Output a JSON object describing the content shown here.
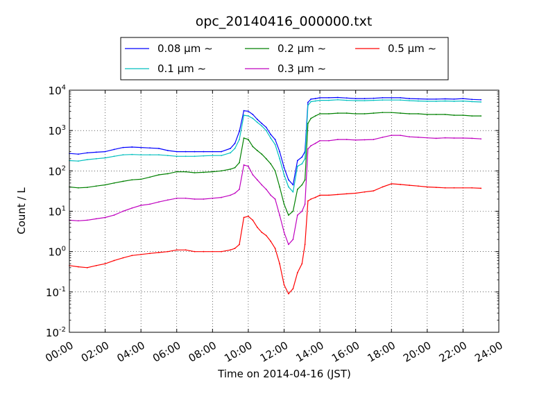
{
  "chart_data": {
    "type": "line",
    "title": "opc_20140416_000000.txt",
    "xlabel": "Time on 2014-04-16 (JST)",
    "ylabel": "Count / L",
    "yscale": "log",
    "xlim": [
      "00:00",
      "24:00"
    ],
    "ylim": [
      0.01,
      10000
    ],
    "grid": true,
    "legend_position": "top-center",
    "x_tick_labels": [
      "00:00",
      "02:00",
      "04:00",
      "06:00",
      "08:00",
      "10:00",
      "12:00",
      "14:00",
      "16:00",
      "18:00",
      "20:00",
      "22:00",
      "24:00"
    ],
    "y_tick_labels": [
      {
        "base": "10",
        "exp": "-2"
      },
      {
        "base": "10",
        "exp": "-1"
      },
      {
        "base": "10",
        "exp": "0"
      },
      {
        "base": "10",
        "exp": "1"
      },
      {
        "base": "10",
        "exp": "2"
      },
      {
        "base": "10",
        "exp": "3"
      },
      {
        "base": "10",
        "exp": "4"
      }
    ],
    "x": [
      "00:00",
      "00:30",
      "01:00",
      "01:30",
      "02:00",
      "02:30",
      "03:00",
      "03:30",
      "04:00",
      "04:30",
      "05:00",
      "05:30",
      "06:00",
      "06:30",
      "07:00",
      "07:30",
      "08:00",
      "08:30",
      "09:00",
      "09:15",
      "09:30",
      "09:45",
      "10:00",
      "10:15",
      "10:30",
      "10:45",
      "11:00",
      "11:15",
      "11:30",
      "11:45",
      "12:00",
      "12:15",
      "12:30",
      "12:45",
      "13:00",
      "13:10",
      "13:20",
      "13:30",
      "13:45",
      "14:00",
      "14:30",
      "15:00",
      "15:30",
      "16:00",
      "16:30",
      "17:00",
      "17:30",
      "18:00",
      "18:30",
      "19:00",
      "19:30",
      "20:00",
      "20:30",
      "21:00",
      "21:30",
      "22:00",
      "22:30",
      "23:00"
    ],
    "series": [
      {
        "name": "0.08 μm ∼",
        "color": "#0000ff",
        "values": [
          270,
          260,
          280,
          290,
          300,
          340,
          380,
          390,
          380,
          370,
          360,
          320,
          300,
          300,
          300,
          300,
          300,
          300,
          360,
          480,
          950,
          3100,
          3000,
          2500,
          1900,
          1500,
          1200,
          800,
          600,
          300,
          120,
          60,
          45,
          180,
          220,
          300,
          5000,
          6000,
          6200,
          6500,
          6500,
          6600,
          6400,
          6200,
          6200,
          6300,
          6500,
          6500,
          6500,
          6200,
          6100,
          6000,
          6000,
          6100,
          6000,
          6200,
          5900,
          5800
        ]
      },
      {
        "name": "0.1 μm ∼",
        "color": "#00bfbf",
        "values": [
          180,
          175,
          190,
          200,
          210,
          230,
          250,
          255,
          250,
          250,
          250,
          240,
          230,
          230,
          230,
          235,
          240,
          240,
          280,
          360,
          600,
          2400,
          2300,
          2000,
          1600,
          1300,
          1000,
          650,
          450,
          200,
          80,
          40,
          30,
          130,
          150,
          200,
          4200,
          5200,
          5400,
          5600,
          5600,
          5800,
          5600,
          5500,
          5500,
          5600,
          5700,
          5700,
          5700,
          5500,
          5400,
          5300,
          5300,
          5400,
          5300,
          5400,
          5200,
          5100
        ]
      },
      {
        "name": "0.2 μm ∼",
        "color": "#008000",
        "values": [
          40,
          38,
          39,
          42,
          45,
          50,
          55,
          60,
          62,
          70,
          80,
          85,
          95,
          95,
          90,
          92,
          95,
          100,
          110,
          120,
          160,
          650,
          600,
          400,
          320,
          260,
          200,
          150,
          100,
          40,
          15,
          8,
          10,
          35,
          45,
          60,
          1500,
          2000,
          2300,
          2600,
          2600,
          2700,
          2700,
          2600,
          2600,
          2700,
          2800,
          2800,
          2700,
          2600,
          2600,
          2500,
          2500,
          2500,
          2400,
          2400,
          2300,
          2300
        ]
      },
      {
        "name": "0.3 μm ∼",
        "color": "#bf00bf",
        "values": [
          6,
          5.8,
          6,
          6.5,
          7,
          8,
          10,
          12,
          14,
          15,
          17,
          19,
          21,
          21,
          20,
          20,
          21,
          22,
          25,
          28,
          35,
          140,
          130,
          80,
          60,
          45,
          35,
          25,
          20,
          8,
          3,
          1.5,
          2,
          8,
          10,
          15,
          350,
          420,
          480,
          560,
          560,
          600,
          600,
          580,
          590,
          600,
          680,
          760,
          760,
          700,
          680,
          660,
          640,
          660,
          650,
          650,
          640,
          620
        ]
      },
      {
        "name": "0.5 μm ∼",
        "color": "#ff0000",
        "values": [
          0.45,
          0.42,
          0.4,
          0.45,
          0.5,
          0.6,
          0.7,
          0.8,
          0.85,
          0.9,
          0.95,
          1.0,
          1.1,
          1.1,
          1.0,
          1.0,
          1.0,
          1.0,
          1.1,
          1.2,
          1.5,
          7,
          7.5,
          6,
          4,
          3,
          2.5,
          1.8,
          1.2,
          0.5,
          0.15,
          0.09,
          0.12,
          0.3,
          0.5,
          1.5,
          18,
          20,
          22,
          25,
          25,
          26,
          27,
          28,
          30,
          32,
          40,
          48,
          46,
          44,
          42,
          40,
          39,
          38,
          38,
          38,
          38,
          37
        ]
      }
    ]
  }
}
